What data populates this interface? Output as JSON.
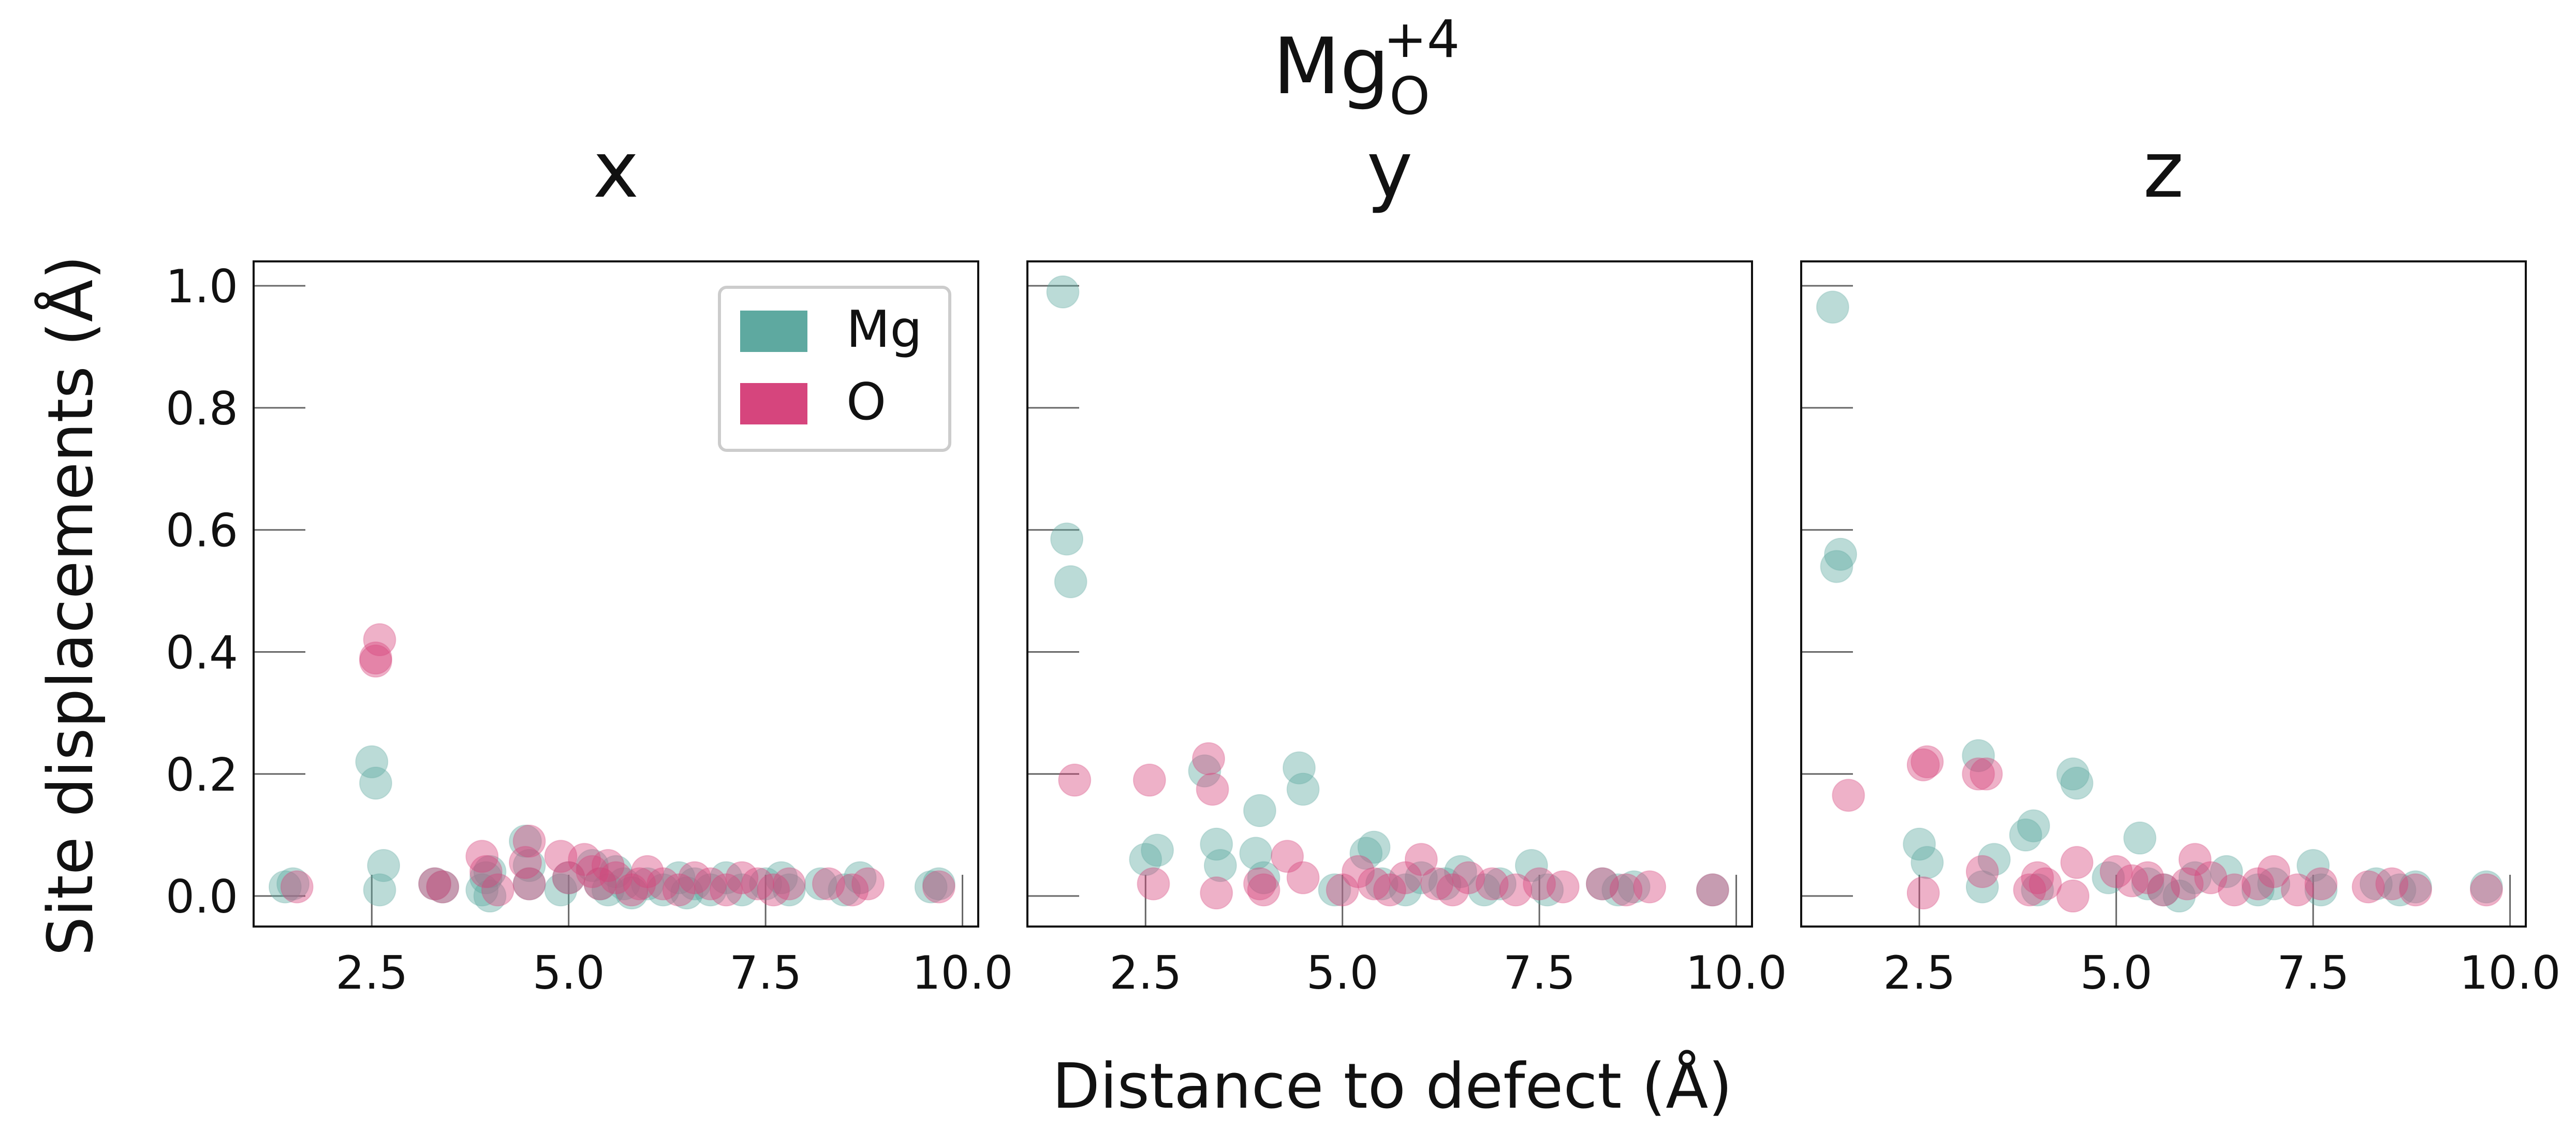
{
  "figure": {
    "suptitle": {
      "base": "Mg",
      "sub": "O",
      "sup": "+4"
    },
    "xlabel": "Distance to defect (Å)",
    "ylabel": "Site displacements (Å)"
  },
  "legend": {
    "placement": "top-right of first panel",
    "items": [
      {
        "label": "Mg",
        "color": "#5ea9a0"
      },
      {
        "label": "O",
        "color": "#d6457d"
      }
    ]
  },
  "chart_data": [
    {
      "type": "scatter",
      "title": "x",
      "xlim": [
        1.0,
        10.2
      ],
      "ylim": [
        -0.05,
        1.04
      ],
      "xticks": [
        "2.5",
        "5.0",
        "7.5",
        "10.0"
      ],
      "yticks": [
        "0.0",
        "0.2",
        "0.4",
        "0.6",
        "0.8",
        "1.0"
      ],
      "grid": false,
      "series": [
        {
          "name": "Mg",
          "color": "#5ea9a0",
          "x": [
            1.4,
            1.5,
            2.5,
            2.55,
            2.6,
            2.65,
            3.3,
            3.4,
            3.9,
            3.95,
            4.0,
            4.0,
            4.45,
            4.5,
            4.5,
            4.9,
            5.0,
            5.3,
            5.4,
            5.5,
            5.6,
            5.7,
            5.8,
            6.0,
            6.2,
            6.4,
            6.5,
            6.6,
            6.8,
            7.0,
            7.2,
            7.5,
            7.7,
            7.8,
            8.2,
            8.5,
            8.7,
            9.6,
            9.7
          ],
          "y": [
            0.015,
            0.02,
            0.22,
            0.185,
            0.01,
            0.05,
            0.02,
            0.015,
            0.01,
            0.03,
            0.0,
            0.04,
            0.09,
            0.05,
            0.02,
            0.01,
            0.03,
            0.05,
            0.02,
            0.01,
            0.04,
            0.02,
            0.005,
            0.02,
            0.01,
            0.03,
            0.005,
            0.02,
            0.01,
            0.03,
            0.01,
            0.02,
            0.03,
            0.01,
            0.02,
            0.01,
            0.03,
            0.015,
            0.02
          ]
        },
        {
          "name": "O",
          "color": "#d6457d",
          "x": [
            1.55,
            2.55,
            2.6,
            2.55,
            3.3,
            3.4,
            3.9,
            3.95,
            4.1,
            4.5,
            4.5,
            4.45,
            4.9,
            5.0,
            5.2,
            5.3,
            5.4,
            5.5,
            5.6,
            5.8,
            5.9,
            6.0,
            6.2,
            6.4,
            6.6,
            6.8,
            7.0,
            7.2,
            7.4,
            7.6,
            7.8,
            8.3,
            8.6,
            8.8,
            9.7
          ],
          "y": [
            0.015,
            0.385,
            0.42,
            0.39,
            0.02,
            0.015,
            0.065,
            0.04,
            0.01,
            0.09,
            0.02,
            0.055,
            0.065,
            0.03,
            0.06,
            0.04,
            0.02,
            0.05,
            0.03,
            0.01,
            0.02,
            0.04,
            0.02,
            0.01,
            0.03,
            0.02,
            0.01,
            0.03,
            0.02,
            0.01,
            0.02,
            0.02,
            0.01,
            0.02,
            0.015
          ]
        }
      ]
    },
    {
      "type": "scatter",
      "title": "y",
      "xlim": [
        1.0,
        10.2
      ],
      "ylim": [
        -0.05,
        1.04
      ],
      "xticks": [
        "2.5",
        "5.0",
        "7.5",
        "10.0"
      ],
      "yticks": [],
      "grid": false,
      "series": [
        {
          "name": "Mg",
          "color": "#5ea9a0",
          "x": [
            1.45,
            1.5,
            1.55,
            2.5,
            2.65,
            3.25,
            3.4,
            3.45,
            3.9,
            3.95,
            4.0,
            4.45,
            4.5,
            4.9,
            5.3,
            5.4,
            5.5,
            5.8,
            6.0,
            6.3,
            6.5,
            6.8,
            7.0,
            7.4,
            7.6,
            8.3,
            8.5,
            8.7,
            9.7
          ],
          "y": [
            0.99,
            0.585,
            0.515,
            0.06,
            0.075,
            0.205,
            0.085,
            0.05,
            0.07,
            0.14,
            0.03,
            0.21,
            0.175,
            0.01,
            0.07,
            0.08,
            0.02,
            0.01,
            0.03,
            0.02,
            0.04,
            0.01,
            0.02,
            0.05,
            0.01,
            0.02,
            0.01,
            0.015,
            0.01
          ]
        },
        {
          "name": "O",
          "color": "#d6457d",
          "x": [
            1.6,
            2.55,
            2.6,
            3.3,
            3.35,
            3.4,
            3.95,
            4.0,
            4.3,
            4.5,
            5.0,
            5.2,
            5.4,
            5.6,
            5.8,
            6.0,
            6.2,
            6.4,
            6.6,
            6.9,
            7.2,
            7.5,
            7.8,
            8.3,
            8.6,
            8.9,
            9.7
          ],
          "y": [
            0.19,
            0.19,
            0.02,
            0.225,
            0.175,
            0.005,
            0.02,
            0.01,
            0.065,
            0.03,
            0.01,
            0.04,
            0.02,
            0.01,
            0.03,
            0.06,
            0.02,
            0.01,
            0.03,
            0.02,
            0.01,
            0.02,
            0.015,
            0.02,
            0.01,
            0.015,
            0.01
          ]
        }
      ]
    },
    {
      "type": "scatter",
      "title": "z",
      "xlim": [
        1.0,
        10.2
      ],
      "ylim": [
        -0.05,
        1.04
      ],
      "xticks": [
        "2.5",
        "5.0",
        "7.5",
        "10.0"
      ],
      "yticks": [],
      "grid": false,
      "series": [
        {
          "name": "Mg",
          "color": "#5ea9a0",
          "x": [
            1.4,
            1.45,
            1.5,
            2.5,
            2.6,
            3.25,
            3.3,
            3.45,
            3.85,
            3.95,
            4.0,
            4.45,
            4.5,
            4.9,
            5.3,
            5.4,
            5.6,
            5.8,
            6.0,
            6.4,
            6.8,
            7.0,
            7.5,
            7.6,
            8.3,
            8.6,
            8.8,
            9.7
          ],
          "y": [
            0.965,
            0.54,
            0.56,
            0.085,
            0.055,
            0.23,
            0.015,
            0.06,
            0.1,
            0.115,
            0.01,
            0.2,
            0.185,
            0.03,
            0.095,
            0.02,
            0.01,
            0.0,
            0.03,
            0.04,
            0.01,
            0.02,
            0.05,
            0.01,
            0.02,
            0.01,
            0.015,
            0.015
          ]
        },
        {
          "name": "O",
          "color": "#d6457d",
          "x": [
            1.6,
            2.55,
            2.6,
            2.55,
            3.25,
            3.35,
            3.3,
            3.9,
            4.0,
            4.1,
            4.5,
            4.45,
            5.0,
            5.2,
            5.4,
            5.6,
            5.9,
            6.0,
            6.2,
            6.5,
            6.8,
            7.0,
            7.3,
            7.6,
            8.2,
            8.5,
            8.8,
            9.7
          ],
          "y": [
            0.165,
            0.215,
            0.22,
            0.005,
            0.2,
            0.2,
            0.04,
            0.01,
            0.03,
            0.02,
            0.055,
            0.0,
            0.04,
            0.025,
            0.03,
            0.01,
            0.02,
            0.06,
            0.03,
            0.01,
            0.02,
            0.04,
            0.01,
            0.02,
            0.015,
            0.02,
            0.01,
            0.01
          ]
        }
      ]
    }
  ]
}
